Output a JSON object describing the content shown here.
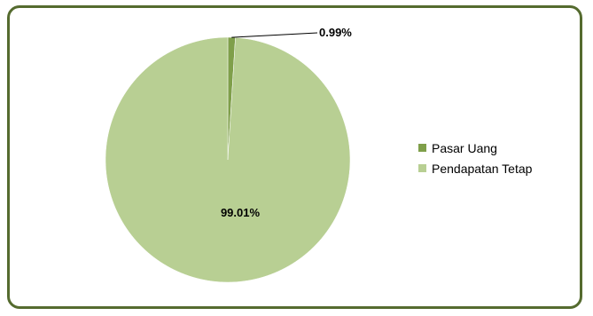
{
  "chart_data": {
    "type": "pie",
    "categories": [
      "Pasar Uang",
      "Pendapatan Tetap"
    ],
    "values": [
      0.99,
      99.01
    ],
    "data_labels": [
      "0.99%",
      "99.01%"
    ],
    "colors": [
      "#7f9f4a",
      "#b8cf93"
    ],
    "legend_position": "right"
  }
}
